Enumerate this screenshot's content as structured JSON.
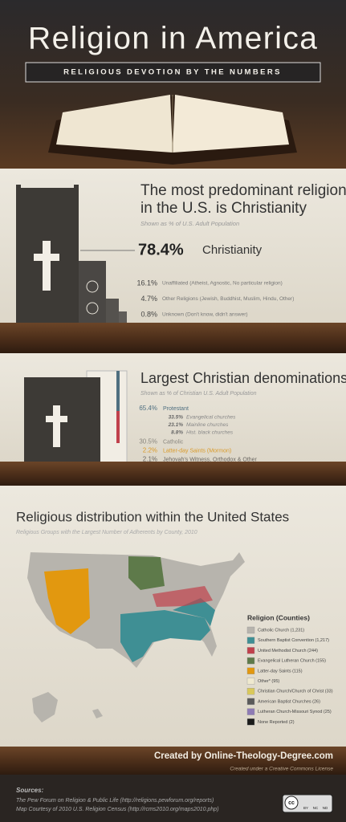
{
  "header": {
    "title": "Religion in America",
    "subtitle": "RELIGIOUS DEVOTION BY THE NUMBERS"
  },
  "section1": {
    "title_lines": [
      "The most predominant religion",
      "in the U.S. is Christianity"
    ],
    "note": "Shown as % of U.S. Adult Population",
    "items": [
      {
        "percent": "78.4%",
        "label": "Christianity"
      },
      {
        "percent": "16.1%",
        "label": "Unaffiliated (Atheist, Agnostic, No particular religion)"
      },
      {
        "percent": "4.7%",
        "label": "Other Religions (Jewish, Buddhist, Muslim, Hindu, Other)"
      },
      {
        "percent": "0.8%",
        "label": "Unknown (Don't know, didn't answer)"
      }
    ]
  },
  "section2": {
    "title": "Largest Christian denominations",
    "note": "Shown as % of Christian U.S. Adult Population",
    "items": [
      {
        "percent": "65.4%",
        "label": "Protestant",
        "color": "#4f6f80",
        "sub": [
          {
            "percent": "33.5%",
            "label": "Evangelical churches"
          },
          {
            "percent": "23.1%",
            "label": "Mainline churches"
          },
          {
            "percent": "8.8%",
            "label": "Hist. black churches"
          }
        ]
      },
      {
        "percent": "30.5%",
        "label": "Catholic",
        "color": "#8a877f"
      },
      {
        "percent": "2.2%",
        "label": "Latter-day Saints (Mormon)",
        "color": "#d99a2a"
      },
      {
        "percent": "2.1%",
        "label": "Jehovah's Witness, Orthodox & Other",
        "color": "#6a6762"
      }
    ]
  },
  "section3": {
    "title": "Religious distribution within the United States",
    "note": "Religious Groups with the Largest Number of Adherents by County, 2010",
    "legend": {
      "title": "Religion (Counties)",
      "items": [
        {
          "label": "Catholic Church (1,231)",
          "color": "#b7b4ad"
        },
        {
          "label": "Southern Baptist Convention (1,217)",
          "color": "#3f8f94"
        },
        {
          "label": "United Methodist Church (244)",
          "color": "#c0414c"
        },
        {
          "label": "Evangelical Lutheran Church (155)",
          "color": "#5e7a4a"
        },
        {
          "label": "Latter-day Saints (115)",
          "color": "#e2980f"
        },
        {
          "label": "Other* (95)",
          "color": "#efe9cf"
        },
        {
          "label": "Christian Church/Church of Christ (33)",
          "color": "#d9c85a"
        },
        {
          "label": "American Baptist Churches (26)",
          "color": "#5a5a5a"
        },
        {
          "label": "Lutheran Church-Missouri Synod (25)",
          "color": "#8e7bb5"
        },
        {
          "label": "None Reported (2)",
          "color": "#1b1b1b"
        }
      ]
    }
  },
  "footer": {
    "credit": "Created by Online-Theology-Degree.com",
    "license": "Created under a Creative Commons License",
    "sources_title": "Sources:",
    "sources": [
      "The Pew Forum on Religion & Public Life (http://religions.pewforum.org/reports)",
      "Map Courtesy of 2010 U.S. Religion Census (http://rcms2010.org/maps2010.php)"
    ],
    "badge": {
      "logo": "cc",
      "terms": [
        "BY",
        "NC",
        "ND"
      ]
    }
  }
}
